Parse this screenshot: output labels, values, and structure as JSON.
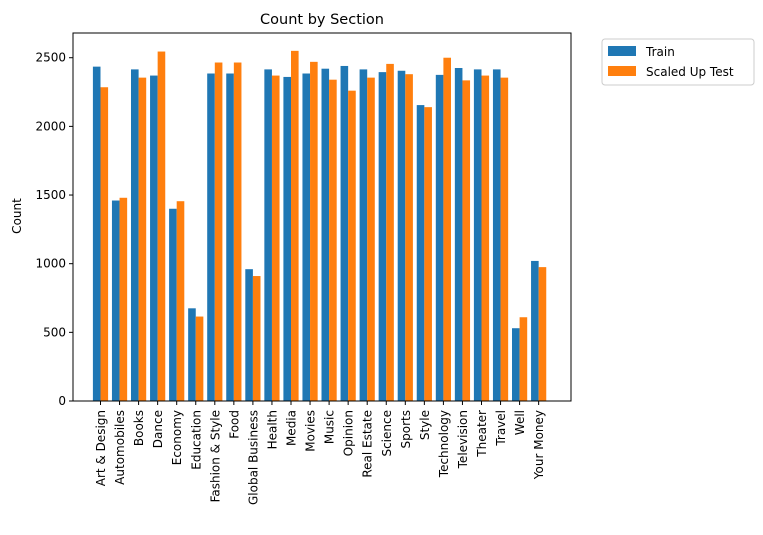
{
  "chart_data": {
    "type": "bar",
    "title": "Count by Section",
    "xlabel": "",
    "ylabel": "Count",
    "ylim": [
      0,
      2680
    ],
    "yticks": [
      0,
      500,
      1000,
      1500,
      2000,
      2500
    ],
    "grid": false,
    "legend_position": "outside-top-right",
    "categories": [
      "Art & Design",
      "Automobiles",
      "Books",
      "Dance",
      "Economy",
      "Education",
      "Fashion & Style",
      "Food",
      "Global Business",
      "Health",
      "Media",
      "Movies",
      "Music",
      "Opinion",
      "Real Estate",
      "Science",
      "Sports",
      "Style",
      "Technology",
      "Television",
      "Theater",
      "Travel",
      "Well",
      "Your Money"
    ],
    "series": [
      {
        "name": "Train",
        "color": "#1f77b4",
        "values": [
          2435,
          1460,
          2415,
          2370,
          1400,
          675,
          2385,
          2385,
          960,
          2415,
          2360,
          2385,
          2420,
          2440,
          2415,
          2395,
          2405,
          2155,
          2375,
          2425,
          2415,
          2415,
          530,
          1020
        ]
      },
      {
        "name": "Scaled Up Test",
        "color": "#ff7f0e",
        "values": [
          2285,
          1480,
          2355,
          2545,
          1455,
          615,
          2465,
          2465,
          910,
          2370,
          2550,
          2470,
          2340,
          2260,
          2355,
          2455,
          2380,
          2140,
          2500,
          2335,
          2370,
          2355,
          610,
          975
        ]
      }
    ]
  }
}
